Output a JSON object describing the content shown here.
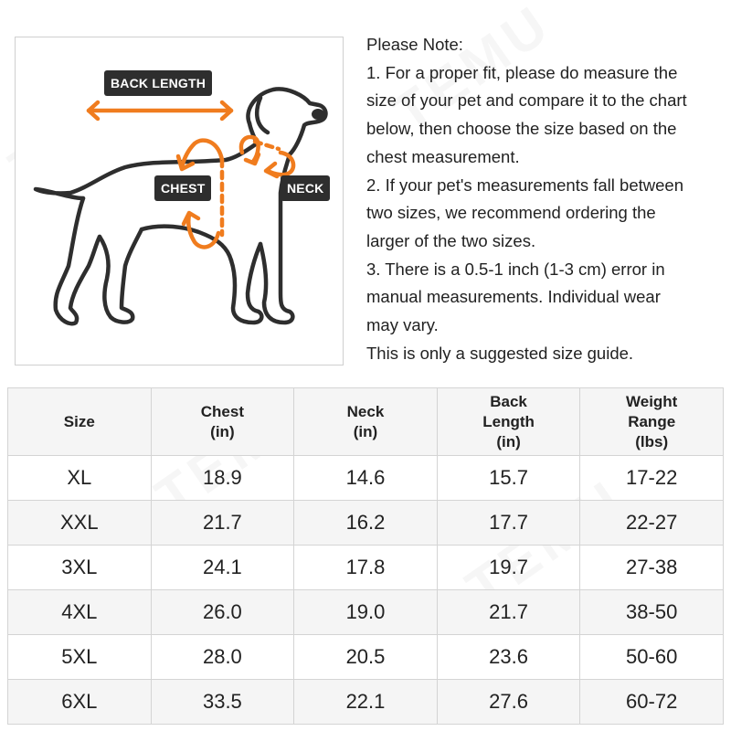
{
  "diagram": {
    "labels": {
      "back_length": "BACK LENGTH",
      "chest": "CHEST",
      "neck": "NECK"
    },
    "colors": {
      "accent": "#f07c1e",
      "outline": "#2e2e2e",
      "tag_bg": "#2e2e2e"
    }
  },
  "notes": {
    "lines": [
      "Please Note:",
      "1. For a proper fit, please do measure the",
      "size of your pet and compare it to the chart",
      "below, then choose the size based on the",
      "chest measurement.",
      "2. If your pet's measurements fall between",
      "two sizes, we recommend ordering the",
      "larger of the two sizes.",
      "3. There is a 0.5-1 inch (1-3 cm) error in",
      "manual measurements. Individual wear",
      "may vary.",
      "This is only a suggested size guide."
    ]
  },
  "table": {
    "headers": [
      [
        "Size"
      ],
      [
        "Chest",
        "(in)"
      ],
      [
        "Neck",
        "(in)"
      ],
      [
        "Back",
        "Length",
        "(in)"
      ],
      [
        "Weight",
        "Range",
        "(lbs)"
      ]
    ],
    "rows": [
      [
        "XL",
        "18.9",
        "14.6",
        "15.7",
        "17-22"
      ],
      [
        "XXL",
        "21.7",
        "16.2",
        "17.7",
        "22-27"
      ],
      [
        "3XL",
        "24.1",
        "17.8",
        "19.7",
        "27-38"
      ],
      [
        "4XL",
        "26.0",
        "19.0",
        "21.7",
        "38-50"
      ],
      [
        "5XL",
        "28.0",
        "20.5",
        "23.6",
        "50-60"
      ],
      [
        "6XL",
        "33.5",
        "22.1",
        "27.6",
        "60-72"
      ]
    ]
  },
  "watermark": "TEMU"
}
